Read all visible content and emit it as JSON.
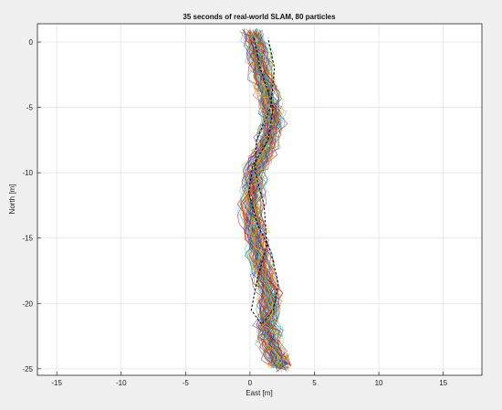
{
  "chart_data": {
    "type": "line",
    "title": "35 seconds of real-world SLAM, 80 particles",
    "xlabel": "East [m]",
    "ylabel": "North [m]",
    "xlim": [
      -16.5,
      18
    ],
    "ylim": [
      -25.5,
      1.4
    ],
    "xticks": [
      -15,
      -10,
      -5,
      0,
      5,
      10,
      15
    ],
    "yticks": [
      0,
      -5,
      -10,
      -15,
      -20,
      -25
    ],
    "grid": true,
    "particles": 80,
    "reference_path": {
      "style": "dashed",
      "color": "#000000",
      "points": [
        [
          0.3,
          0.3
        ],
        [
          0.8,
          -2
        ],
        [
          1.8,
          -5
        ],
        [
          1.4,
          -7.5
        ],
        [
          0.2,
          -9.5
        ],
        [
          -0.1,
          -11.5
        ],
        [
          0.6,
          -14
        ],
        [
          1.6,
          -16
        ],
        [
          2.2,
          -18.5
        ],
        [
          1.8,
          -20.5
        ],
        [
          0.9,
          -21.6
        ],
        [
          0.1,
          -20.5
        ],
        [
          0.6,
          -18
        ],
        [
          1.3,
          -15.5
        ],
        [
          1.1,
          -12.5
        ],
        [
          0.4,
          -10
        ],
        [
          0.5,
          -7.5
        ],
        [
          1.6,
          -5
        ],
        [
          1.9,
          -2
        ],
        [
          1.4,
          0.3
        ]
      ]
    },
    "particle_trajectories": {
      "count": 80,
      "colors": [
        "#0072bd",
        "#d95319",
        "#edb120",
        "#7e2f8e",
        "#77ac30",
        "#4dbeee",
        "#a2142f"
      ],
      "centerline": [
        [
          0.2,
          0.8
        ],
        [
          0.7,
          -1.5
        ],
        [
          1.4,
          -4
        ],
        [
          1.8,
          -6
        ],
        [
          1.2,
          -8
        ],
        [
          0.3,
          -10
        ],
        [
          0.1,
          -12.5
        ],
        [
          0.5,
          -15
        ],
        [
          1.0,
          -17.5
        ],
        [
          1.5,
          -19.5
        ],
        [
          1.3,
          -21.5
        ],
        [
          1.6,
          -23
        ],
        [
          2.5,
          -25.3
        ]
      ]
    }
  }
}
